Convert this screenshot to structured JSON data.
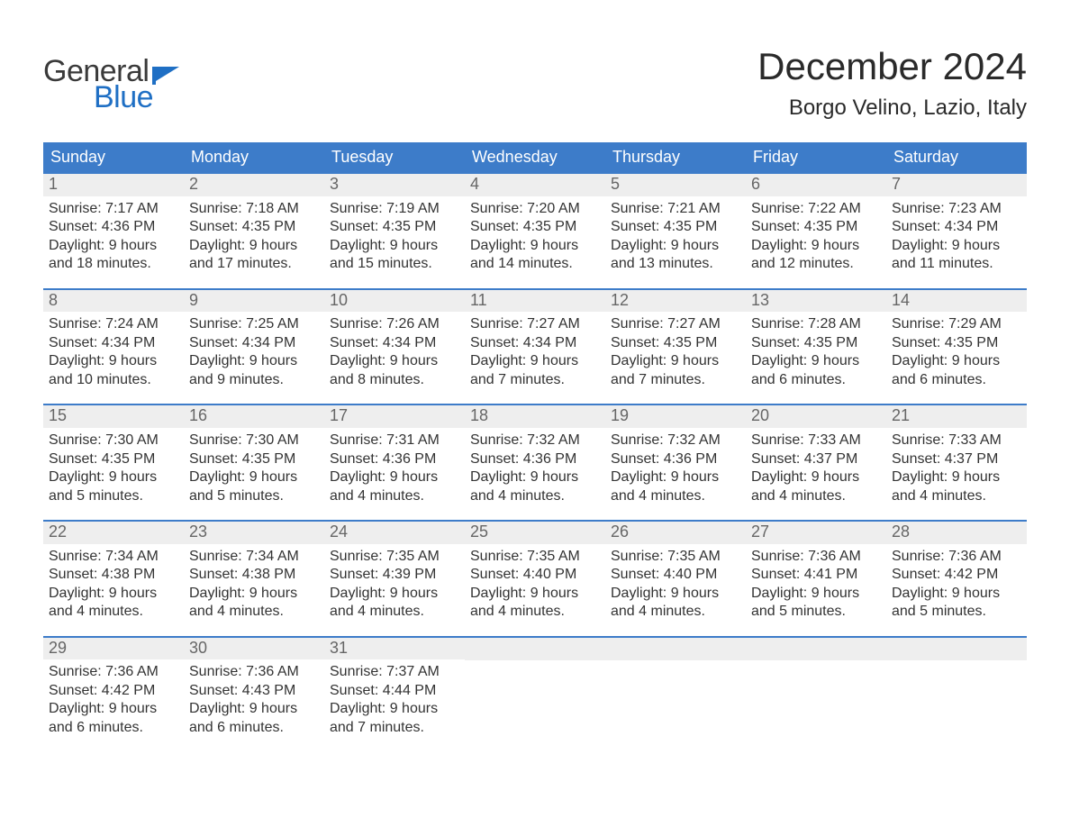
{
  "logo": {
    "general": "General",
    "blue": "Blue"
  },
  "title": "December 2024",
  "location": "Borgo Velino, Lazio, Italy",
  "colors": {
    "header_blue": "#3d7cc9",
    "accent_blue": "#1f6fc4",
    "cell_bg": "#eeeeee",
    "text": "#333333"
  },
  "weekdays": [
    "Sunday",
    "Monday",
    "Tuesday",
    "Wednesday",
    "Thursday",
    "Friday",
    "Saturday"
  ],
  "labels": {
    "sunrise": "Sunrise:",
    "sunset": "Sunset:",
    "daylight": "Daylight:"
  },
  "weeks": [
    [
      {
        "n": "1",
        "sunrise": "7:17 AM",
        "sunset": "4:36 PM",
        "dl1": "9 hours",
        "dl2": "and 18 minutes."
      },
      {
        "n": "2",
        "sunrise": "7:18 AM",
        "sunset": "4:35 PM",
        "dl1": "9 hours",
        "dl2": "and 17 minutes."
      },
      {
        "n": "3",
        "sunrise": "7:19 AM",
        "sunset": "4:35 PM",
        "dl1": "9 hours",
        "dl2": "and 15 minutes."
      },
      {
        "n": "4",
        "sunrise": "7:20 AM",
        "sunset": "4:35 PM",
        "dl1": "9 hours",
        "dl2": "and 14 minutes."
      },
      {
        "n": "5",
        "sunrise": "7:21 AM",
        "sunset": "4:35 PM",
        "dl1": "9 hours",
        "dl2": "and 13 minutes."
      },
      {
        "n": "6",
        "sunrise": "7:22 AM",
        "sunset": "4:35 PM",
        "dl1": "9 hours",
        "dl2": "and 12 minutes."
      },
      {
        "n": "7",
        "sunrise": "7:23 AM",
        "sunset": "4:34 PM",
        "dl1": "9 hours",
        "dl2": "and 11 minutes."
      }
    ],
    [
      {
        "n": "8",
        "sunrise": "7:24 AM",
        "sunset": "4:34 PM",
        "dl1": "9 hours",
        "dl2": "and 10 minutes."
      },
      {
        "n": "9",
        "sunrise": "7:25 AM",
        "sunset": "4:34 PM",
        "dl1": "9 hours",
        "dl2": "and 9 minutes."
      },
      {
        "n": "10",
        "sunrise": "7:26 AM",
        "sunset": "4:34 PM",
        "dl1": "9 hours",
        "dl2": "and 8 minutes."
      },
      {
        "n": "11",
        "sunrise": "7:27 AM",
        "sunset": "4:34 PM",
        "dl1": "9 hours",
        "dl2": "and 7 minutes."
      },
      {
        "n": "12",
        "sunrise": "7:27 AM",
        "sunset": "4:35 PM",
        "dl1": "9 hours",
        "dl2": "and 7 minutes."
      },
      {
        "n": "13",
        "sunrise": "7:28 AM",
        "sunset": "4:35 PM",
        "dl1": "9 hours",
        "dl2": "and 6 minutes."
      },
      {
        "n": "14",
        "sunrise": "7:29 AM",
        "sunset": "4:35 PM",
        "dl1": "9 hours",
        "dl2": "and 6 minutes."
      }
    ],
    [
      {
        "n": "15",
        "sunrise": "7:30 AM",
        "sunset": "4:35 PM",
        "dl1": "9 hours",
        "dl2": "and 5 minutes."
      },
      {
        "n": "16",
        "sunrise": "7:30 AM",
        "sunset": "4:35 PM",
        "dl1": "9 hours",
        "dl2": "and 5 minutes."
      },
      {
        "n": "17",
        "sunrise": "7:31 AM",
        "sunset": "4:36 PM",
        "dl1": "9 hours",
        "dl2": "and 4 minutes."
      },
      {
        "n": "18",
        "sunrise": "7:32 AM",
        "sunset": "4:36 PM",
        "dl1": "9 hours",
        "dl2": "and 4 minutes."
      },
      {
        "n": "19",
        "sunrise": "7:32 AM",
        "sunset": "4:36 PM",
        "dl1": "9 hours",
        "dl2": "and 4 minutes."
      },
      {
        "n": "20",
        "sunrise": "7:33 AM",
        "sunset": "4:37 PM",
        "dl1": "9 hours",
        "dl2": "and 4 minutes."
      },
      {
        "n": "21",
        "sunrise": "7:33 AM",
        "sunset": "4:37 PM",
        "dl1": "9 hours",
        "dl2": "and 4 minutes."
      }
    ],
    [
      {
        "n": "22",
        "sunrise": "7:34 AM",
        "sunset": "4:38 PM",
        "dl1": "9 hours",
        "dl2": "and 4 minutes."
      },
      {
        "n": "23",
        "sunrise": "7:34 AM",
        "sunset": "4:38 PM",
        "dl1": "9 hours",
        "dl2": "and 4 minutes."
      },
      {
        "n": "24",
        "sunrise": "7:35 AM",
        "sunset": "4:39 PM",
        "dl1": "9 hours",
        "dl2": "and 4 minutes."
      },
      {
        "n": "25",
        "sunrise": "7:35 AM",
        "sunset": "4:40 PM",
        "dl1": "9 hours",
        "dl2": "and 4 minutes."
      },
      {
        "n": "26",
        "sunrise": "7:35 AM",
        "sunset": "4:40 PM",
        "dl1": "9 hours",
        "dl2": "and 4 minutes."
      },
      {
        "n": "27",
        "sunrise": "7:36 AM",
        "sunset": "4:41 PM",
        "dl1": "9 hours",
        "dl2": "and 5 minutes."
      },
      {
        "n": "28",
        "sunrise": "7:36 AM",
        "sunset": "4:42 PM",
        "dl1": "9 hours",
        "dl2": "and 5 minutes."
      }
    ],
    [
      {
        "n": "29",
        "sunrise": "7:36 AM",
        "sunset": "4:42 PM",
        "dl1": "9 hours",
        "dl2": "and 6 minutes."
      },
      {
        "n": "30",
        "sunrise": "7:36 AM",
        "sunset": "4:43 PM",
        "dl1": "9 hours",
        "dl2": "and 6 minutes."
      },
      {
        "n": "31",
        "sunrise": "7:37 AM",
        "sunset": "4:44 PM",
        "dl1": "9 hours",
        "dl2": "and 7 minutes."
      },
      {
        "empty": true
      },
      {
        "empty": true
      },
      {
        "empty": true
      },
      {
        "empty": true
      }
    ]
  ]
}
